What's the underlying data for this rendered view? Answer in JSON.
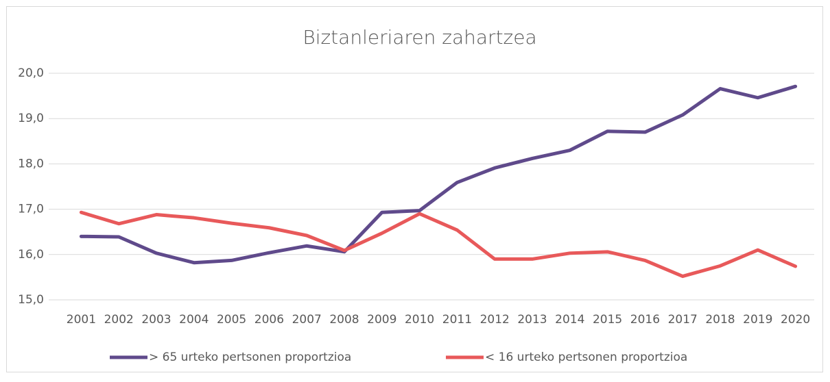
{
  "chart_data": {
    "type": "line",
    "title": "Biztanleriaren zahartzea",
    "categories": [
      "2001",
      "2002",
      "2003",
      "2004",
      "2005",
      "2006",
      "2007",
      "2008",
      "2009",
      "2010",
      "2011",
      "2012",
      "2013",
      "2014",
      "2015",
      "2016",
      "2017",
      "2018",
      "2019",
      "2020"
    ],
    "series": [
      {
        "name": "> 65 urteko pertsonen proportzioa",
        "color": "#5f4a8b",
        "values": [
          16.4,
          16.39,
          16.03,
          15.82,
          15.87,
          16.04,
          16.19,
          16.06,
          16.93,
          16.97,
          17.59,
          17.91,
          18.12,
          18.3,
          18.72,
          18.7,
          19.08,
          19.66,
          19.46,
          19.71
        ]
      },
      {
        "name": "< 16 urteko pertsonen proportzioa",
        "color": "#e8595a",
        "values": [
          16.93,
          16.68,
          16.88,
          16.81,
          16.69,
          16.59,
          16.42,
          16.09,
          16.47,
          16.9,
          16.54,
          15.9,
          15.9,
          16.03,
          16.06,
          15.87,
          15.52,
          15.75,
          16.1,
          15.74
        ]
      }
    ],
    "ylim": [
      15,
      20
    ],
    "yticks": [
      {
        "value": 15,
        "label": "15,0"
      },
      {
        "value": 16,
        "label": "16,0"
      },
      {
        "value": 17,
        "label": "17,0"
      },
      {
        "value": 18,
        "label": "18,0"
      },
      {
        "value": 19,
        "label": "19,0"
      },
      {
        "value": 20,
        "label": "20,0"
      }
    ],
    "grid": true,
    "legend": "bottom"
  }
}
